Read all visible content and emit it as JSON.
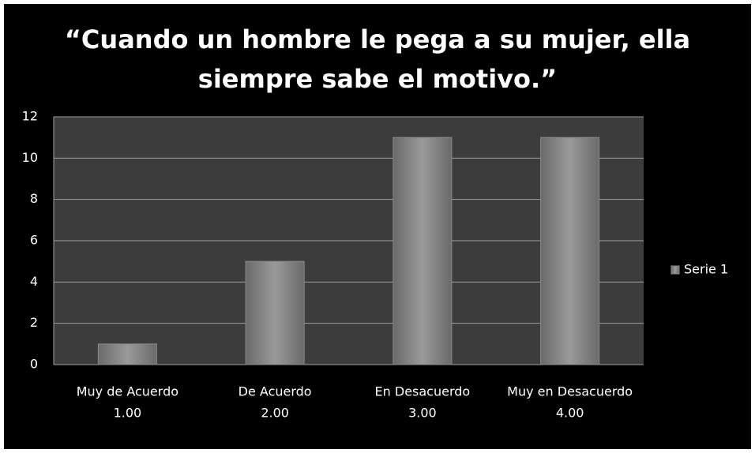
{
  "chart_data": {
    "type": "bar",
    "title": [
      "“Cuando un hombre le pega a su mujer, ella",
      "siempre sabe el motivo.”"
    ],
    "categories": [
      [
        "Muy de Acuerdo",
        "1.00"
      ],
      [
        "De Acuerdo",
        "2.00"
      ],
      [
        "En Desacuerdo",
        "3.00"
      ],
      [
        "Muy en Desacuerdo",
        "4.00"
      ]
    ],
    "series": [
      {
        "name": "Serie 1",
        "color": "#8a8a8a",
        "values": [
          1,
          5,
          11,
          11
        ]
      }
    ],
    "ylim": [
      0,
      12
    ],
    "yticks": [
      0,
      2,
      4,
      6,
      8,
      10,
      12
    ],
    "grid": true,
    "legend": "right"
  }
}
